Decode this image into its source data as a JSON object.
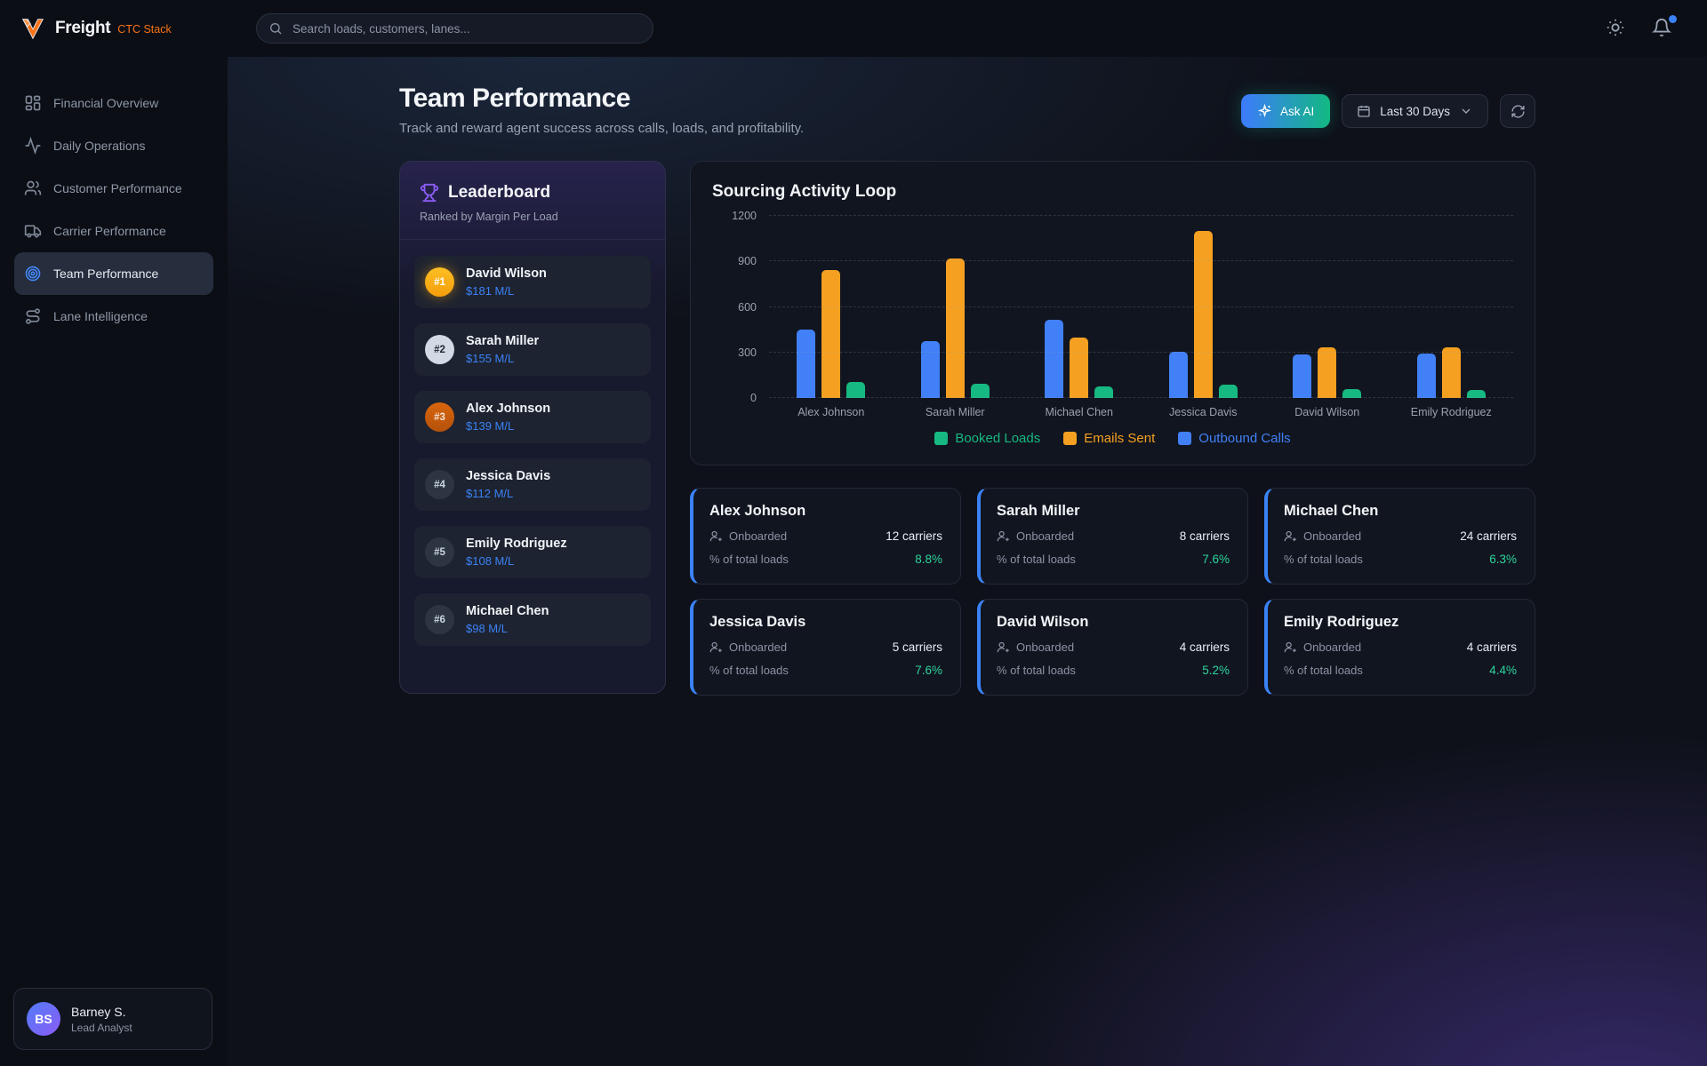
{
  "brand": {
    "name": "Freight",
    "suffix": "CTC Stack"
  },
  "topbar": {
    "search_placeholder": "Search loads, customers, lanes...",
    "icons": [
      "search-icon",
      "theme-sun-icon",
      "notifications-bell-icon"
    ],
    "notification_dot_color": "#3b82f6"
  },
  "sidebar": {
    "items": [
      {
        "label": "Financial Overview",
        "icon": "dashboard-icon",
        "active": false
      },
      {
        "label": "Daily Operations",
        "icon": "activity-icon",
        "active": false
      },
      {
        "label": "Customer Performance",
        "icon": "users-icon",
        "active": false
      },
      {
        "label": "Carrier Performance",
        "icon": "truck-icon",
        "active": false
      },
      {
        "label": "Team Performance",
        "icon": "target-icon",
        "active": true
      },
      {
        "label": "Lane Intelligence",
        "icon": "route-icon",
        "active": false
      }
    ],
    "user": {
      "initials": "BS",
      "name": "Barney S.",
      "role": "Lead Analyst"
    }
  },
  "header": {
    "title": "Team Performance",
    "subtitle": "Track and reward agent success across calls, loads, and profitability.",
    "ask_ai_label": "Ask AI",
    "date_range_label": "Last 30 Days",
    "accent_gradient": [
      "#3d7bfd",
      "#12b981"
    ]
  },
  "leaderboard": {
    "title": "Leaderboard",
    "subtitle": "Ranked by Margin Per Load",
    "entries": [
      {
        "rank": "#1",
        "name": "David Wilson",
        "value": "$181 M/L",
        "tier": "gold"
      },
      {
        "rank": "#2",
        "name": "Sarah Miller",
        "value": "$155 M/L",
        "tier": "silver"
      },
      {
        "rank": "#3",
        "name": "Alex Johnson",
        "value": "$139 M/L",
        "tier": "bronze"
      },
      {
        "rank": "#4",
        "name": "Jessica Davis",
        "value": "$112 M/L",
        "tier": "default"
      },
      {
        "rank": "#5",
        "name": "Emily Rodriguez",
        "value": "$108 M/L",
        "tier": "default"
      },
      {
        "rank": "#6",
        "name": "Michael Chen",
        "value": "$98 M/L",
        "tier": "default"
      }
    ]
  },
  "chart_data": {
    "type": "bar",
    "title": "Sourcing Activity Loop",
    "categories": [
      "Alex Johnson",
      "Sarah Miller",
      "Michael Chen",
      "Jessica Davis",
      "David Wilson",
      "Emily Rodriguez"
    ],
    "series": [
      {
        "name": "Booked Loads",
        "color": "#16b981",
        "values": [
          105,
          95,
          75,
          90,
          60,
          50
        ]
      },
      {
        "name": "Emails Sent",
        "color": "#f5a020",
        "values": [
          845,
          920,
          400,
          1100,
          335,
          335
        ]
      },
      {
        "name": "Outbound Calls",
        "color": "#4180f6",
        "values": [
          450,
          375,
          515,
          305,
          285,
          290
        ]
      }
    ],
    "bar_order_left_to_right": [
      "Outbound Calls",
      "Emails Sent",
      "Booked Loads"
    ],
    "ylim": [
      0,
      1200
    ],
    "yticks": [
      0,
      300,
      600,
      900,
      1200
    ],
    "grid": "dashed-horizontal",
    "legend_position": "bottom"
  },
  "agent_cards": {
    "labels": {
      "onboarded": "Onboarded",
      "total_loads": "% of total loads"
    },
    "cards": [
      {
        "name": "Alex Johnson",
        "carriers": "12 carriers",
        "percent": "8.8%"
      },
      {
        "name": "Sarah Miller",
        "carriers": "8 carriers",
        "percent": "7.6%"
      },
      {
        "name": "Michael Chen",
        "carriers": "24 carriers",
        "percent": "6.3%"
      },
      {
        "name": "Jessica Davis",
        "carriers": "5 carriers",
        "percent": "7.6%"
      },
      {
        "name": "David Wilson",
        "carriers": "4 carriers",
        "percent": "5.2%"
      },
      {
        "name": "Emily Rodriguez",
        "carriers": "4 carriers",
        "percent": "4.4%"
      }
    ],
    "percent_color": "#2dd49d",
    "accent_border_color": "#3b82f6"
  }
}
